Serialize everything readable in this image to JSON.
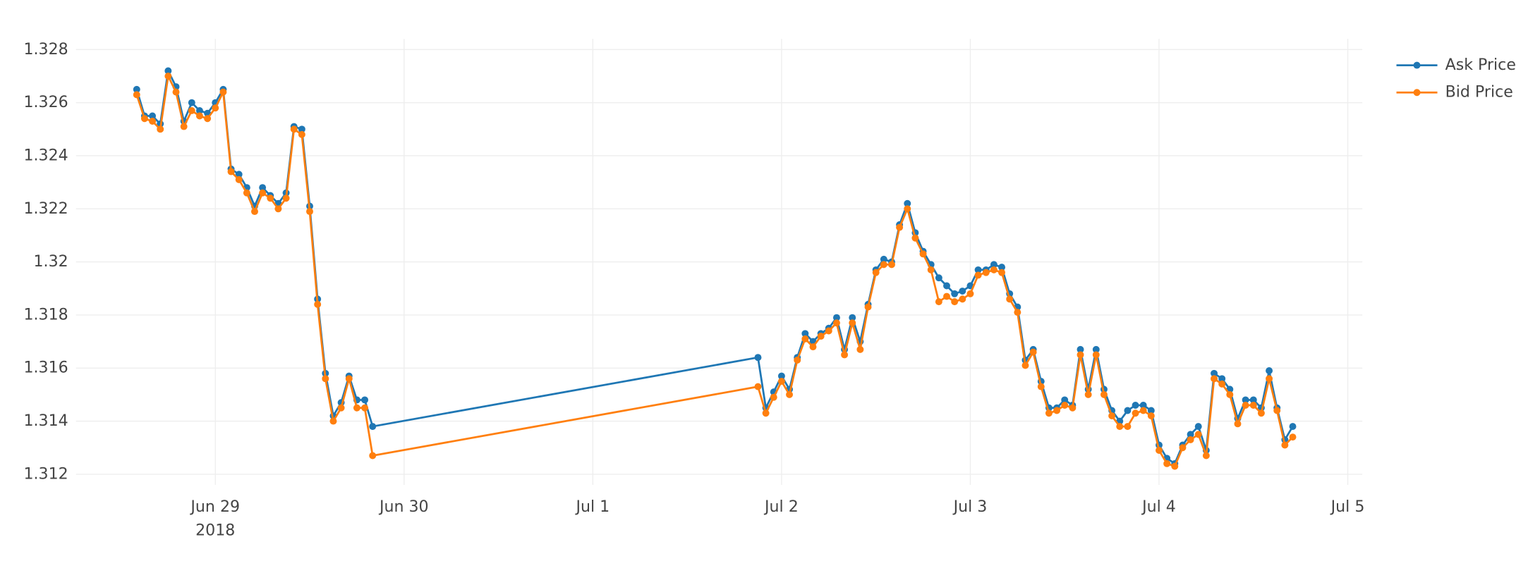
{
  "chart_data": {
    "type": "line",
    "x": [
      "2018-06-28 14:00",
      "2018-06-28 15:00",
      "2018-06-28 16:00",
      "2018-06-28 17:00",
      "2018-06-28 18:00",
      "2018-06-28 19:00",
      "2018-06-28 20:00",
      "2018-06-28 21:00",
      "2018-06-28 22:00",
      "2018-06-28 23:00",
      "2018-06-29 00:00",
      "2018-06-29 01:00",
      "2018-06-29 02:00",
      "2018-06-29 03:00",
      "2018-06-29 04:00",
      "2018-06-29 05:00",
      "2018-06-29 06:00",
      "2018-06-29 07:00",
      "2018-06-29 08:00",
      "2018-06-29 09:00",
      "2018-06-29 10:00",
      "2018-06-29 11:00",
      "2018-06-29 12:00",
      "2018-06-29 13:00",
      "2018-06-29 14:00",
      "2018-06-29 15:00",
      "2018-06-29 16:00",
      "2018-06-29 17:00",
      "2018-06-29 18:00",
      "2018-06-29 19:00",
      "2018-06-29 20:00",
      "2018-07-01 21:00",
      "2018-07-01 22:00",
      "2018-07-01 23:00",
      "2018-07-02 00:00",
      "2018-07-02 01:00",
      "2018-07-02 02:00",
      "2018-07-02 03:00",
      "2018-07-02 04:00",
      "2018-07-02 05:00",
      "2018-07-02 06:00",
      "2018-07-02 07:00",
      "2018-07-02 08:00",
      "2018-07-02 09:00",
      "2018-07-02 10:00",
      "2018-07-02 11:00",
      "2018-07-02 12:00",
      "2018-07-02 13:00",
      "2018-07-02 14:00",
      "2018-07-02 15:00",
      "2018-07-02 16:00",
      "2018-07-02 17:00",
      "2018-07-02 18:00",
      "2018-07-02 19:00",
      "2018-07-02 20:00",
      "2018-07-02 21:00",
      "2018-07-02 22:00",
      "2018-07-02 23:00",
      "2018-07-03 00:00",
      "2018-07-03 01:00",
      "2018-07-03 02:00",
      "2018-07-03 03:00",
      "2018-07-03 04:00",
      "2018-07-03 05:00",
      "2018-07-03 06:00",
      "2018-07-03 07:00",
      "2018-07-03 08:00",
      "2018-07-03 09:00",
      "2018-07-03 10:00",
      "2018-07-03 11:00",
      "2018-07-03 12:00",
      "2018-07-03 13:00",
      "2018-07-03 14:00",
      "2018-07-03 15:00",
      "2018-07-03 16:00",
      "2018-07-03 17:00",
      "2018-07-03 18:00",
      "2018-07-03 19:00",
      "2018-07-03 20:00",
      "2018-07-03 21:00",
      "2018-07-03 22:00",
      "2018-07-03 23:00",
      "2018-07-04 00:00",
      "2018-07-04 01:00",
      "2018-07-04 02:00",
      "2018-07-04 03:00",
      "2018-07-04 04:00",
      "2018-07-04 05:00",
      "2018-07-04 06:00",
      "2018-07-04 07:00",
      "2018-07-04 08:00",
      "2018-07-04 09:00",
      "2018-07-04 10:00",
      "2018-07-04 11:00",
      "2018-07-04 12:00",
      "2018-07-04 13:00",
      "2018-07-04 14:00",
      "2018-07-04 15:00",
      "2018-07-04 16:00",
      "2018-07-04 17:00"
    ],
    "series": [
      {
        "name": "Ask Price",
        "color": "#1f77b4",
        "values": [
          1.3265,
          1.3255,
          1.3255,
          1.3252,
          1.3272,
          1.3266,
          1.3253,
          1.326,
          1.3257,
          1.3256,
          1.326,
          1.3265,
          1.3235,
          1.3233,
          1.3228,
          1.3221,
          1.3228,
          1.3225,
          1.3222,
          1.3226,
          1.3251,
          1.325,
          1.3221,
          1.3186,
          1.3158,
          1.3142,
          1.3147,
          1.3157,
          1.3148,
          1.3148,
          1.3138,
          1.3164,
          1.3145,
          1.3151,
          1.3157,
          1.3152,
          1.3164,
          1.3173,
          1.317,
          1.3173,
          1.3175,
          1.3179,
          1.3167,
          1.3179,
          1.317,
          1.3184,
          1.3197,
          1.3201,
          1.32,
          1.3214,
          1.3222,
          1.3211,
          1.3204,
          1.3199,
          1.3194,
          1.3191,
          1.3188,
          1.3189,
          1.3191,
          1.3197,
          1.3197,
          1.3199,
          1.3198,
          1.3188,
          1.3183,
          1.3163,
          1.3167,
          1.3155,
          1.3145,
          1.3145,
          1.3148,
          1.3146,
          1.3167,
          1.3152,
          1.3167,
          1.3152,
          1.3144,
          1.314,
          1.3144,
          1.3146,
          1.3146,
          1.3144,
          1.3131,
          1.3126,
          1.3124,
          1.3131,
          1.3135,
          1.3138,
          1.3129,
          1.3158,
          1.3156,
          1.3152,
          1.3141,
          1.3148,
          1.3148,
          1.3145,
          1.3159,
          1.3145,
          1.3133,
          1.3138
        ]
      },
      {
        "name": "Bid Price",
        "color": "#ff7f0e",
        "values": [
          1.3263,
          1.3254,
          1.3253,
          1.325,
          1.327,
          1.3264,
          1.3251,
          1.3257,
          1.3255,
          1.3254,
          1.3258,
          1.3264,
          1.3234,
          1.3231,
          1.3226,
          1.3219,
          1.3226,
          1.3224,
          1.322,
          1.3224,
          1.325,
          1.3248,
          1.3219,
          1.3184,
          1.3156,
          1.314,
          1.3145,
          1.3156,
          1.3145,
          1.3145,
          1.3127,
          1.3153,
          1.3143,
          1.3149,
          1.3155,
          1.315,
          1.3163,
          1.3171,
          1.3168,
          1.3172,
          1.3174,
          1.3177,
          1.3165,
          1.3177,
          1.3167,
          1.3183,
          1.3196,
          1.3199,
          1.3199,
          1.3213,
          1.322,
          1.3209,
          1.3203,
          1.3197,
          1.3185,
          1.3187,
          1.3185,
          1.3186,
          1.3188,
          1.3195,
          1.3196,
          1.3197,
          1.3196,
          1.3186,
          1.3181,
          1.3161,
          1.3166,
          1.3153,
          1.3143,
          1.3144,
          1.3146,
          1.3145,
          1.3165,
          1.315,
          1.3165,
          1.315,
          1.3142,
          1.3138,
          1.3138,
          1.3143,
          1.3144,
          1.3142,
          1.3129,
          1.3124,
          1.3123,
          1.313,
          1.3133,
          1.3135,
          1.3127,
          1.3156,
          1.3154,
          1.315,
          1.3139,
          1.3146,
          1.3146,
          1.3143,
          1.3156,
          1.3144,
          1.3131,
          1.3134
        ]
      }
    ],
    "xlim": [
      "2018-06-28 06:17",
      "2018-07-05 01:51"
    ],
    "xticks": [
      {
        "value": "2018-06-29",
        "label": "Jun 29"
      },
      {
        "value": "2018-06-30",
        "label": "Jun 30"
      },
      {
        "value": "2018-07-01",
        "label": "Jul 1"
      },
      {
        "value": "2018-07-02",
        "label": "Jul 2"
      },
      {
        "value": "2018-07-03",
        "label": "Jul 3"
      },
      {
        "value": "2018-07-04",
        "label": "Jul 4"
      },
      {
        "value": "2018-07-05",
        "label": "Jul 5"
      }
    ],
    "xtick_year": "2018",
    "ylim": [
      1.3116,
      1.3284
    ],
    "yticks": [
      1.312,
      1.314,
      1.316,
      1.318,
      1.32,
      1.322,
      1.324,
      1.326,
      1.328
    ],
    "grid": true,
    "legend": "top-right"
  }
}
